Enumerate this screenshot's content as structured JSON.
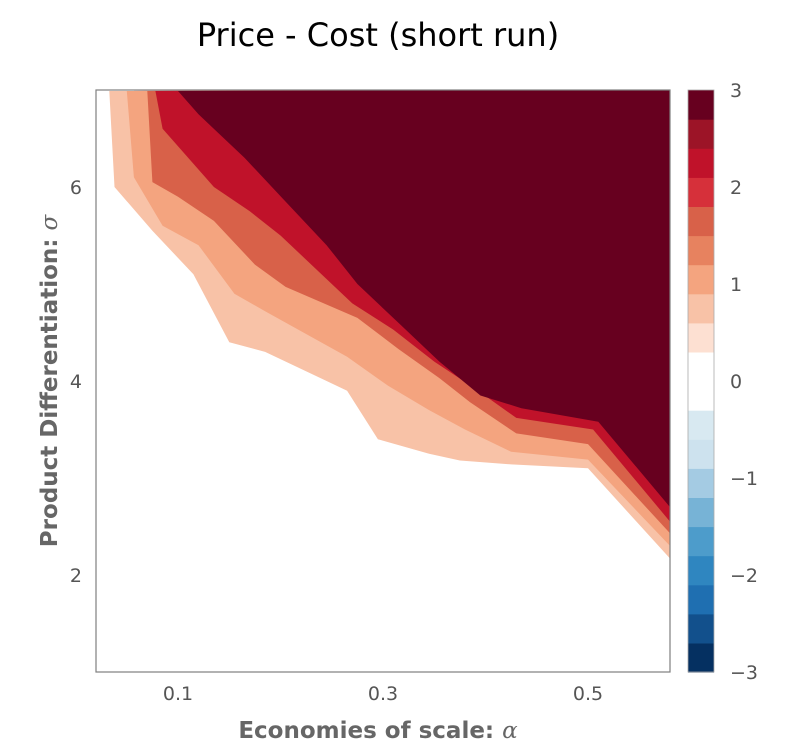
{
  "chart_data": {
    "type": "heatmap",
    "subtype": "filled-contour",
    "title": "Price - Cost (short run)",
    "xlabel": "Economies of scale:",
    "xlabel_symbol": "α",
    "ylabel": "Product Differentiation:",
    "ylabel_symbol": "σ",
    "xlim": [
      0.02,
      0.58
    ],
    "ylim": [
      1.0,
      7.0
    ],
    "x_ticks": [
      0.1,
      0.3,
      0.5
    ],
    "x_tick_labels": [
      "0.1",
      "0.3",
      "0.5"
    ],
    "y_ticks": [
      2,
      4,
      6
    ],
    "y_tick_labels": [
      "2",
      "4",
      "6"
    ],
    "colorbar": {
      "levels": [
        -3,
        -2.5,
        -2,
        -1.5,
        -1,
        -0.5,
        0,
        0.5,
        1,
        1.5,
        2,
        2.5,
        3
      ],
      "ticks": [
        -3,
        -2,
        -1,
        0,
        1,
        2,
        3
      ],
      "tick_labels": [
        "−3",
        "−2",
        "−1",
        "0",
        "1",
        "2",
        "3"
      ],
      "colors": [
        "#053061",
        "#12508c",
        "#1f6fb1",
        "#2f86c0",
        "#4d9ccb",
        "#77b3d6",
        "#a4cbe3",
        "#cde2ee",
        "#d8e9f1",
        "#ffffff",
        "#ffffff",
        "#fde0d2",
        "#f8c2a7",
        "#f4a47f",
        "#e7825f",
        "#d86149",
        "#d6303a",
        "#c0122a",
        "#9c1427",
        "#67001f"
      ]
    },
    "band_colors": [
      "#ffffff",
      "#f8c2a7",
      "#f4a47f",
      "#d86149",
      "#c0122a",
      "#67001f"
    ],
    "contour_boundaries": [
      {
        "level": 0.5,
        "x": [
          0.02,
          0.033,
          0.038,
          0.075,
          0.115,
          0.15,
          0.185,
          0.265,
          0.295,
          0.345,
          0.375,
          0.425,
          0.5,
          0.58
        ],
        "y": [
          6.99,
          6.99,
          6.0,
          5.55,
          5.1,
          4.4,
          4.3,
          3.9,
          3.4,
          3.25,
          3.18,
          3.14,
          3.1,
          2.17
        ]
      },
      {
        "level": 1.0,
        "x": [
          0.02,
          0.05,
          0.057,
          0.085,
          0.12,
          0.155,
          0.185,
          0.265,
          0.305,
          0.345,
          0.38,
          0.425,
          0.5,
          0.58
        ],
        "y": [
          6.99,
          6.99,
          6.1,
          5.6,
          5.4,
          4.9,
          4.72,
          4.25,
          3.95,
          3.7,
          3.5,
          3.27,
          3.19,
          2.3
        ]
      },
      {
        "level": 1.5,
        "x": [
          0.02,
          0.07,
          0.075,
          0.1,
          0.135,
          0.175,
          0.205,
          0.275,
          0.315,
          0.355,
          0.385,
          0.43,
          0.5,
          0.58
        ],
        "y": [
          6.99,
          6.99,
          6.05,
          5.9,
          5.65,
          5.2,
          4.97,
          4.65,
          4.33,
          4.03,
          3.78,
          3.46,
          3.35,
          2.43
        ]
      },
      {
        "level": 2.0,
        "x": [
          0.02,
          0.078,
          0.085,
          0.135,
          0.17,
          0.2,
          0.23,
          0.27,
          0.31,
          0.35,
          0.39,
          0.43,
          0.505,
          0.58
        ],
        "y": [
          6.99,
          6.99,
          6.6,
          6.0,
          5.75,
          5.5,
          5.2,
          4.8,
          4.53,
          4.2,
          3.92,
          3.62,
          3.5,
          2.55
        ]
      },
      {
        "level": 2.5,
        "x": [
          0.02,
          0.1,
          0.12,
          0.165,
          0.205,
          0.245,
          0.275,
          0.315,
          0.355,
          0.395,
          0.435,
          0.51,
          0.58
        ],
        "y": [
          6.99,
          6.99,
          6.75,
          6.3,
          5.85,
          5.4,
          5.0,
          4.6,
          4.2,
          3.85,
          3.72,
          3.58,
          2.7
        ]
      }
    ]
  }
}
